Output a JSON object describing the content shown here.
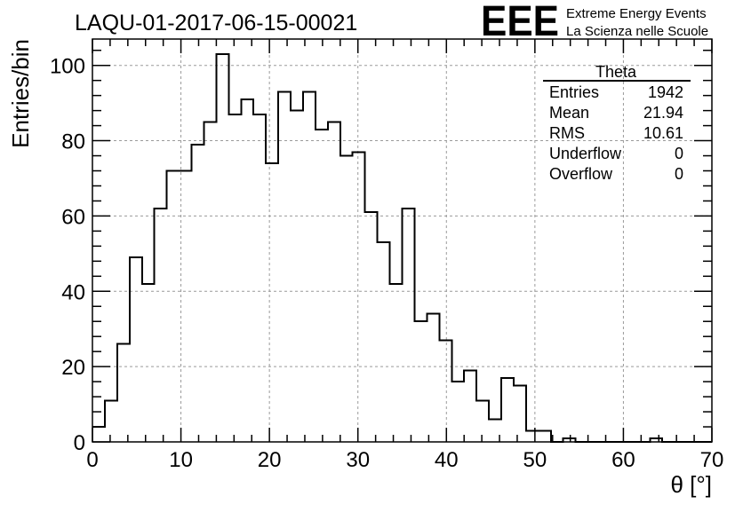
{
  "header": {
    "run_title": "LAQU-01-2017-06-15-00021",
    "logo_text": "EEE",
    "logo_line1": "Extreme Energy Events",
    "logo_line2": "La Scienza nelle Scuole",
    "logo_color": "#1010e8"
  },
  "stats": {
    "name": "Theta",
    "rows": [
      {
        "label": "Entries",
        "value": "1942"
      },
      {
        "label": "Mean",
        "value": "21.94"
      },
      {
        "label": "RMS",
        "value": "10.61"
      },
      {
        "label": "Underflow",
        "value": "0"
      },
      {
        "label": "Overflow",
        "value": "0"
      }
    ]
  },
  "chart_data": {
    "type": "bar",
    "histogram": true,
    "title": "LAQU-01-2017-06-15-00021",
    "xlabel": "θ [°]",
    "ylabel": "Entries/bin",
    "xlim": [
      0,
      70
    ],
    "ylim": [
      0,
      107
    ],
    "bin_width": 1.4,
    "xticks": [
      0,
      10,
      20,
      30,
      40,
      50,
      60,
      70
    ],
    "yticks": [
      0,
      20,
      40,
      60,
      80,
      100
    ],
    "grid": true,
    "line_color": "#000000",
    "values": [
      4,
      11,
      26,
      49,
      42,
      62,
      72,
      72,
      79,
      85,
      103,
      87,
      91,
      87,
      74,
      93,
      88,
      93,
      83,
      85,
      76,
      77,
      61,
      53,
      42,
      62,
      32,
      34,
      27,
      16,
      19,
      11,
      6,
      17,
      15,
      3,
      3,
      0,
      1,
      0,
      0,
      0,
      0,
      0,
      0,
      1,
      0,
      0,
      0,
      0
    ]
  }
}
